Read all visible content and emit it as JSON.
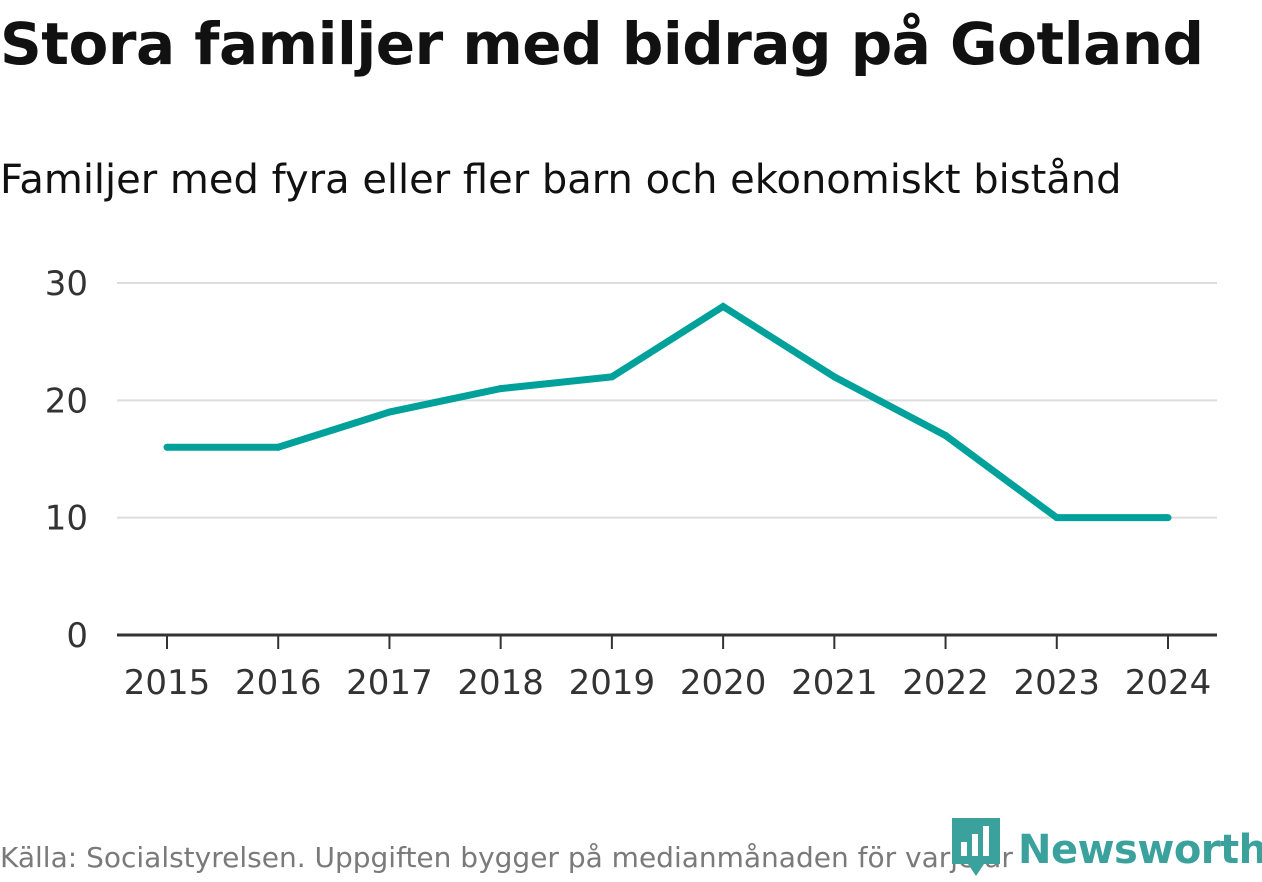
{
  "header": {
    "title": "Stora familjer med bidrag på Gotland",
    "subtitle": "Familjer med fyra eller fler barn och ekonomiskt bistånd"
  },
  "footer": {
    "source": "Källa: Socialstyrelsen. Uppgiften bygger på medianmånaden för varje år",
    "brand": "Newsworthy"
  },
  "colors": {
    "line": "#00a19a",
    "grid": "#dddddd",
    "axis": "#333333",
    "brand": "#3aa19c"
  },
  "chart_data": {
    "type": "line",
    "title": "Stora familjer med bidrag på Gotland",
    "subtitle": "Familjer med fyra eller fler barn och ekonomiskt bistånd",
    "xlabel": "",
    "ylabel": "",
    "categories": [
      "2015",
      "2016",
      "2017",
      "2018",
      "2019",
      "2020",
      "2021",
      "2022",
      "2023",
      "2024"
    ],
    "series": [
      {
        "name": "Familjer med fyra eller fler barn och ekonomiskt bistånd",
        "values": [
          16,
          16,
          19,
          21,
          22,
          28,
          22,
          17,
          10,
          10
        ]
      }
    ],
    "yticks": [
      0,
      10,
      20,
      30
    ],
    "ylim": [
      0,
      30
    ],
    "grid": true,
    "legend": "none"
  }
}
